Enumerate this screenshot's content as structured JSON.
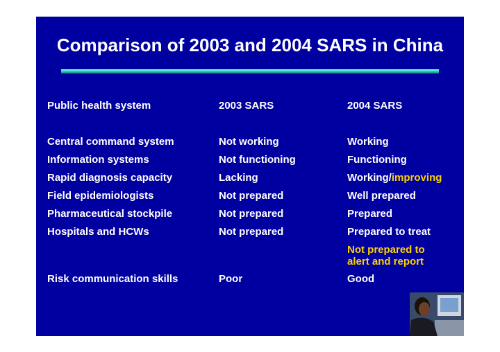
{
  "title": "Comparison of 2003 and 2004 SARS in China",
  "highlight_color": "#ffd200",
  "table": {
    "header": [
      "Public health  system",
      "2003 SARS",
      "2004 SARS"
    ],
    "rows": [
      [
        "Central command system",
        "Not working",
        "Working"
      ],
      [
        "Information systems",
        "Not functioning",
        "Functioning"
      ],
      [
        "Rapid diagnosis capacity",
        "Lacking",
        [
          {
            "text": "Working/"
          },
          {
            "text": "improving",
            "highlight": true
          }
        ]
      ],
      [
        "Field epidemiologists",
        "Not prepared",
        "Well prepared"
      ],
      [
        "Pharmaceutical stockpile",
        "Not prepared",
        "Prepared"
      ],
      [
        "Hospitals and HCWs",
        "Not prepared",
        "Prepared to treat"
      ]
    ],
    "note": [
      "Not prepared to",
      "alert and report"
    ],
    "last_row": [
      "Risk communication skills",
      "Poor",
      "Good"
    ]
  }
}
